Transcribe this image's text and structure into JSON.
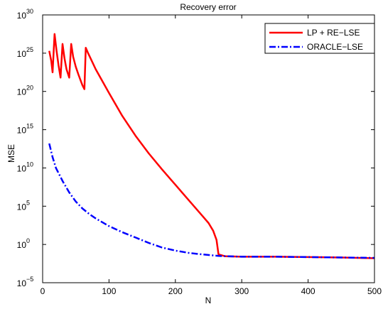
{
  "chart_data": {
    "type": "line",
    "title": "Recovery error",
    "xlabel": "N",
    "ylabel": "MSE",
    "xlim": [
      0,
      500
    ],
    "ylim_log10": [
      -5,
      30
    ],
    "y_scale": "log",
    "x_ticks": [
      "0",
      "100",
      "200",
      "300",
      "400",
      "500"
    ],
    "y_tick_base": "10",
    "y_tick_exponents": [
      "−5",
      "0",
      "5",
      "10",
      "15",
      "20",
      "25",
      "30"
    ],
    "grid": false,
    "legend_position": "top-right",
    "series": [
      {
        "name": "LP + RE−LSE",
        "color": "#ff0000",
        "line_style": "solid",
        "points_log10": [
          [
            10,
            25.3
          ],
          [
            13,
            24.0
          ],
          [
            15,
            22.5
          ],
          [
            18,
            27.5
          ],
          [
            21,
            25.3
          ],
          [
            24,
            23.4
          ],
          [
            27,
            21.8
          ],
          [
            30,
            26.2
          ],
          [
            33,
            24.3
          ],
          [
            36,
            22.9
          ],
          [
            40,
            21.8
          ],
          [
            43,
            26.2
          ],
          [
            46,
            24.5
          ],
          [
            50,
            23.2
          ],
          [
            54,
            22.2
          ],
          [
            57,
            21.5
          ],
          [
            60,
            20.8
          ],
          [
            63,
            20.3
          ],
          [
            65,
            25.7
          ],
          [
            68,
            25.1
          ],
          [
            80,
            22.9
          ],
          [
            100,
            19.8
          ],
          [
            120,
            16.8
          ],
          [
            140,
            14.2
          ],
          [
            160,
            11.9
          ],
          [
            180,
            9.8
          ],
          [
            200,
            7.8
          ],
          [
            220,
            5.8
          ],
          [
            240,
            3.8
          ],
          [
            250,
            2.8
          ],
          [
            257,
            1.8
          ],
          [
            262,
            0.6
          ],
          [
            265,
            -1.3
          ],
          [
            275,
            -1.55
          ],
          [
            300,
            -1.6
          ],
          [
            350,
            -1.6
          ],
          [
            400,
            -1.65
          ],
          [
            450,
            -1.7
          ],
          [
            500,
            -1.8
          ]
        ]
      },
      {
        "name": "ORACLE−LSE",
        "color": "#0000ff",
        "line_style": "dash-dot",
        "points_log10": [
          [
            10,
            13.2
          ],
          [
            15,
            11.4
          ],
          [
            20,
            10.0
          ],
          [
            30,
            8.3
          ],
          [
            40,
            6.8
          ],
          [
            50,
            5.6
          ],
          [
            60,
            4.7
          ],
          [
            70,
            4.0
          ],
          [
            80,
            3.4
          ],
          [
            100,
            2.4
          ],
          [
            120,
            1.6
          ],
          [
            140,
            0.9
          ],
          [
            160,
            0.2
          ],
          [
            180,
            -0.4
          ],
          [
            200,
            -0.8
          ],
          [
            220,
            -1.1
          ],
          [
            240,
            -1.3
          ],
          [
            265,
            -1.5
          ],
          [
            300,
            -1.6
          ],
          [
            350,
            -1.6
          ],
          [
            400,
            -1.65
          ],
          [
            450,
            -1.7
          ],
          [
            500,
            -1.75
          ]
        ]
      }
    ]
  }
}
